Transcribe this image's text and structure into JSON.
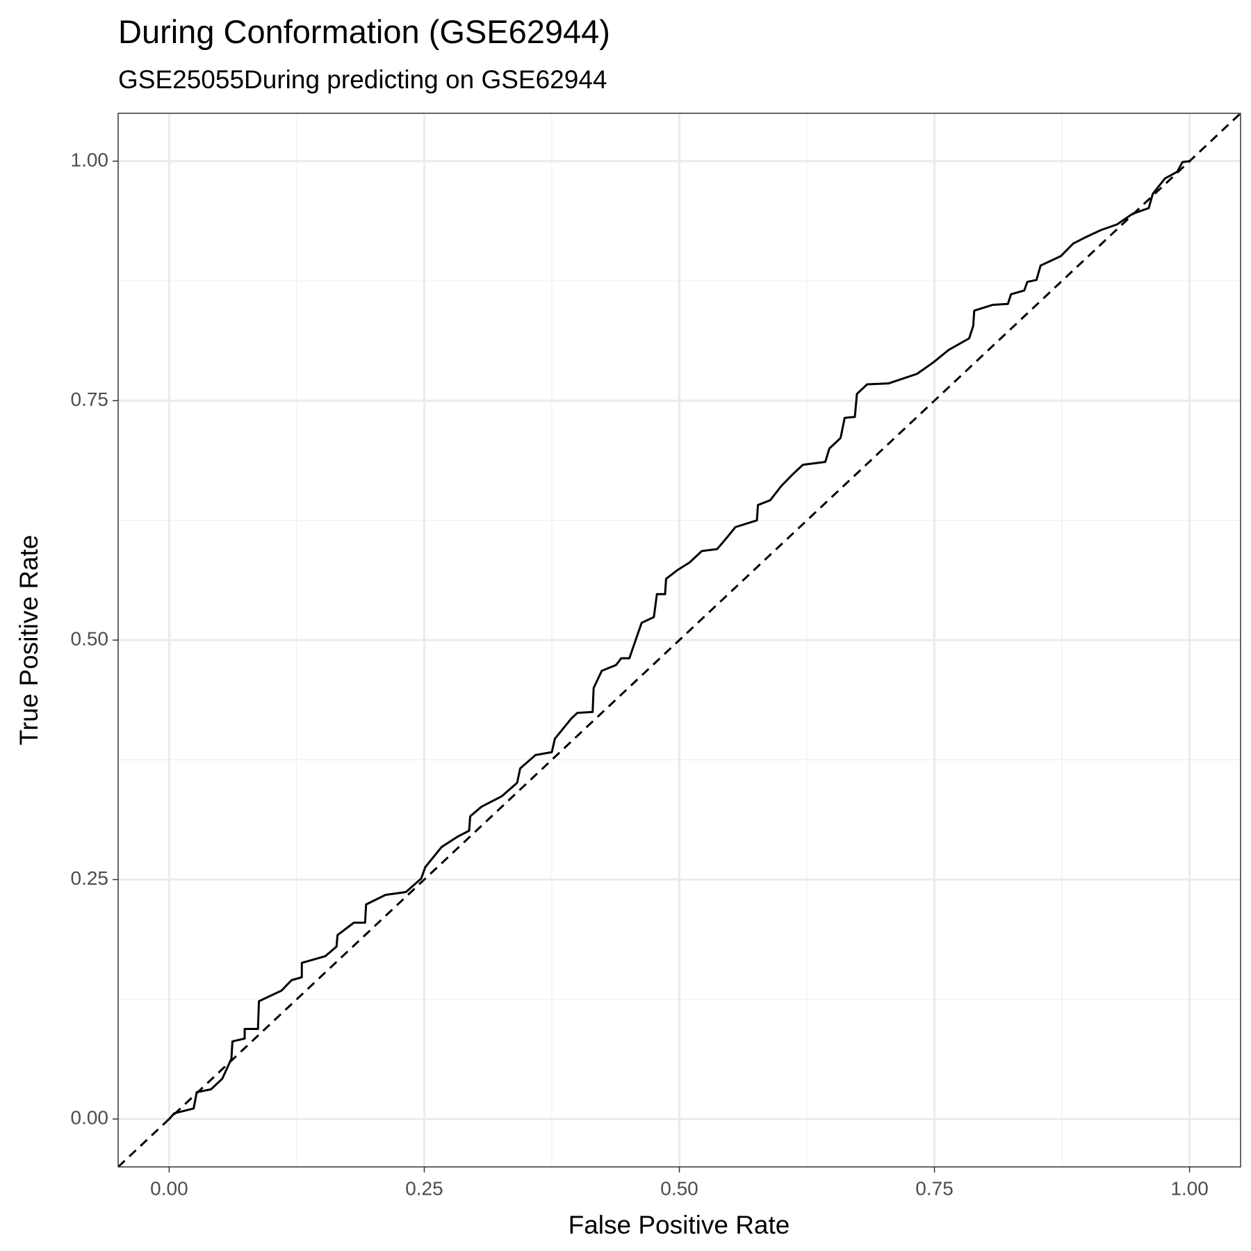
{
  "chart_data": {
    "type": "line",
    "title": "During Conformation (GSE62944)",
    "subtitle": "GSE25055During predicting on GSE62944",
    "x_label": "False Positive Rate",
    "y_label": "True Positive Rate",
    "color": "#000000",
    "diagonal": true,
    "grid": true,
    "xlim": [
      -0.05,
      1.05
    ],
    "ylim": [
      -0.05,
      1.05
    ],
    "xticks": [
      {
        "value": 0,
        "label": "0.00"
      },
      {
        "value": 0.25,
        "label": "0.25"
      },
      {
        "value": 0.5,
        "label": "0.50"
      },
      {
        "value": 0.75,
        "label": "0.75"
      },
      {
        "value": 1,
        "label": "1.00"
      }
    ],
    "yticks": [
      {
        "value": 0,
        "label": "0.00"
      },
      {
        "value": 0.25,
        "label": "0.25"
      },
      {
        "value": 0.5,
        "label": "0.50"
      },
      {
        "value": 0.75,
        "label": "0.75"
      },
      {
        "value": 1,
        "label": "1.00"
      }
    ],
    "x": [
      0,
      0.005,
      0.024,
      0.027,
      0.041,
      0.052,
      0.061,
      0.062,
      0.074,
      0.074,
      0.087,
      0.088,
      0.11,
      0.12,
      0.13,
      0.13,
      0.153,
      0.164,
      0.165,
      0.181,
      0.192,
      0.193,
      0.212,
      0.232,
      0.247,
      0.251,
      0.267,
      0.283,
      0.294,
      0.295,
      0.306,
      0.326,
      0.341,
      0.344,
      0.359,
      0.375,
      0.378,
      0.394,
      0.4,
      0.415,
      0.416,
      0.424,
      0.438,
      0.443,
      0.451,
      0.463,
      0.475,
      0.478,
      0.486,
      0.487,
      0.498,
      0.51,
      0.522,
      0.537,
      0.545,
      0.555,
      0.576,
      0.577,
      0.589,
      0.6,
      0.611,
      0.621,
      0.643,
      0.647,
      0.658,
      0.662,
      0.672,
      0.674,
      0.684,
      0.705,
      0.733,
      0.749,
      0.764,
      0.784,
      0.788,
      0.789,
      0.807,
      0.822,
      0.825,
      0.838,
      0.841,
      0.85,
      0.854,
      0.874,
      0.886,
      0.897,
      0.913,
      0.929,
      0.944,
      0.96,
      0.964,
      0.976,
      0.988,
      0.993,
      1
    ],
    "values": [
      0,
      0.006,
      0.011,
      0.028,
      0.031,
      0.042,
      0.063,
      0.081,
      0.084,
      0.094,
      0.094,
      0.123,
      0.134,
      0.145,
      0.148,
      0.163,
      0.17,
      0.18,
      0.192,
      0.205,
      0.205,
      0.224,
      0.234,
      0.237,
      0.251,
      0.263,
      0.284,
      0.295,
      0.301,
      0.316,
      0.326,
      0.337,
      0.351,
      0.366,
      0.38,
      0.383,
      0.397,
      0.418,
      0.424,
      0.425,
      0.45,
      0.468,
      0.474,
      0.481,
      0.481,
      0.518,
      0.524,
      0.548,
      0.548,
      0.564,
      0.573,
      0.581,
      0.593,
      0.595,
      0.605,
      0.618,
      0.625,
      0.641,
      0.646,
      0.661,
      0.673,
      0.683,
      0.686,
      0.7,
      0.711,
      0.732,
      0.733,
      0.757,
      0.767,
      0.768,
      0.778,
      0.79,
      0.803,
      0.815,
      0.828,
      0.844,
      0.85,
      0.851,
      0.861,
      0.865,
      0.874,
      0.876,
      0.891,
      0.901,
      0.914,
      0.92,
      0.928,
      0.934,
      0.945,
      0.951,
      0.966,
      0.982,
      0.989,
      0.999,
      1
    ]
  }
}
